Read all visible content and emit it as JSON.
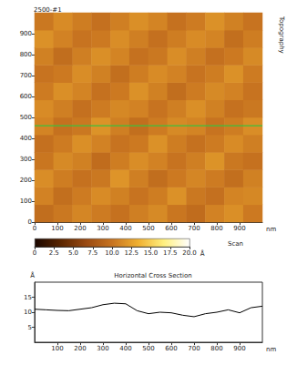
{
  "chart_data": [
    {
      "type": "heatmap",
      "title": "2500-#1",
      "subtitle": "Topography",
      "annotation": "Scan",
      "x_label": "nm",
      "xlim": [
        0,
        1000
      ],
      "xticks": [
        0,
        100,
        200,
        300,
        400,
        500,
        600,
        700,
        800,
        900
      ],
      "ylim": [
        0,
        1000
      ],
      "yticks": [
        0,
        100,
        200,
        300,
        400,
        500,
        600,
        700,
        800,
        900
      ],
      "values": [
        [
          9.5,
          10.2,
          11.0,
          10.4,
          9.8,
          10.6,
          11.2,
          10.1,
          9.4,
          10.8,
          11.5,
          10.3
        ],
        [
          10.8,
          9.6,
          10.4,
          11.3,
          10.7,
          9.9,
          10.5,
          11.6,
          10.2,
          9.7,
          10.9,
          11.1
        ],
        [
          11.4,
          10.5,
          9.8,
          10.2,
          11.8,
          10.6,
          9.5,
          10.3,
          11.0,
          10.4,
          9.6,
          10.7
        ],
        [
          10.1,
          11.2,
          10.7,
          9.4,
          10.5,
          11.4,
          10.8,
          9.9,
          10.6,
          11.7,
          10.2,
          9.8
        ],
        [
          9.7,
          10.4,
          11.5,
          10.8,
          9.9,
          10.3,
          11.6,
          10.5,
          9.8,
          10.4,
          11.3,
          10.6
        ],
        [
          10.9,
          9.8,
          10.2,
          11.7,
          10.6,
          9.6,
          10.4,
          11.2,
          10.9,
          9.9,
          10.5,
          11.4
        ],
        [
          11.3,
          10.6,
          9.7,
          10.4,
          11.1,
          10.8,
          9.9,
          10.6,
          11.5,
          10.7,
          9.8,
          10.2
        ],
        [
          10.4,
          11.5,
          10.9,
          9.8,
          10.3,
          11.6,
          10.7,
          9.5,
          10.4,
          11.2,
          10.8,
          9.9
        ],
        [
          9.9,
          10.3,
          11.4,
          10.7,
          9.6,
          10.5,
          11.3,
          10.8,
          9.9,
          10.5,
          11.6,
          10.4
        ],
        [
          10.7,
          9.5,
          10.6,
          11.5,
          10.9,
          9.8,
          10.2,
          11.4,
          10.6,
          9.7,
          10.3,
          11.2
        ],
        [
          11.6,
          10.8,
          9.9,
          10.3,
          11.4,
          10.6,
          9.7,
          10.5,
          11.3,
          10.9,
          9.6,
          10.5
        ],
        [
          10.2,
          11.3,
          10.5,
          9.7,
          10.6,
          11.5,
          10.9,
          9.8,
          10.4,
          11.6,
          10.7,
          9.9
        ]
      ],
      "cross_section_y": 460,
      "color": "#3cc03c",
      "colorbar": {
        "range": [
          0,
          20
        ],
        "label": "Å",
        "ticks": [
          0,
          {
            "value": 2.5,
            "label": "2.5"
          },
          {
            "value": 5,
            "label": "5.0"
          },
          {
            "value": 7.5,
            "label": "7.5"
          },
          {
            "value": 10,
            "label": "10.0"
          },
          {
            "value": 12.5,
            "label": "12.5"
          },
          {
            "value": 15,
            "label": "15.0"
          },
          {
            "value": 17.5,
            "label": "17.5"
          },
          {
            "value": 20,
            "label": "20.0"
          }
        ]
      }
    },
    {
      "type": "line",
      "title": "Horizontal Cross Section",
      "x_label": "nm",
      "y_label": "Å",
      "x": [
        0,
        50,
        100,
        150,
        200,
        250,
        300,
        350,
        400,
        450,
        500,
        550,
        600,
        650,
        700,
        750,
        800,
        850,
        900,
        950,
        1000
      ],
      "values": [
        11,
        10.8,
        10.6,
        10.5,
        11,
        11.5,
        12.5,
        13,
        12.8,
        10.5,
        9.5,
        10,
        9.8,
        9,
        8.5,
        9.5,
        10,
        10.8,
        9.8,
        11.5,
        12
      ],
      "xlim": [
        0,
        1000
      ],
      "xticks": [
        100,
        200,
        300,
        400,
        500,
        600,
        700,
        800,
        900
      ],
      "ylim": [
        0,
        20
      ],
      "yticks": [
        5,
        10,
        15
      ],
      "color": "#000000",
      "grid": false
    }
  ]
}
